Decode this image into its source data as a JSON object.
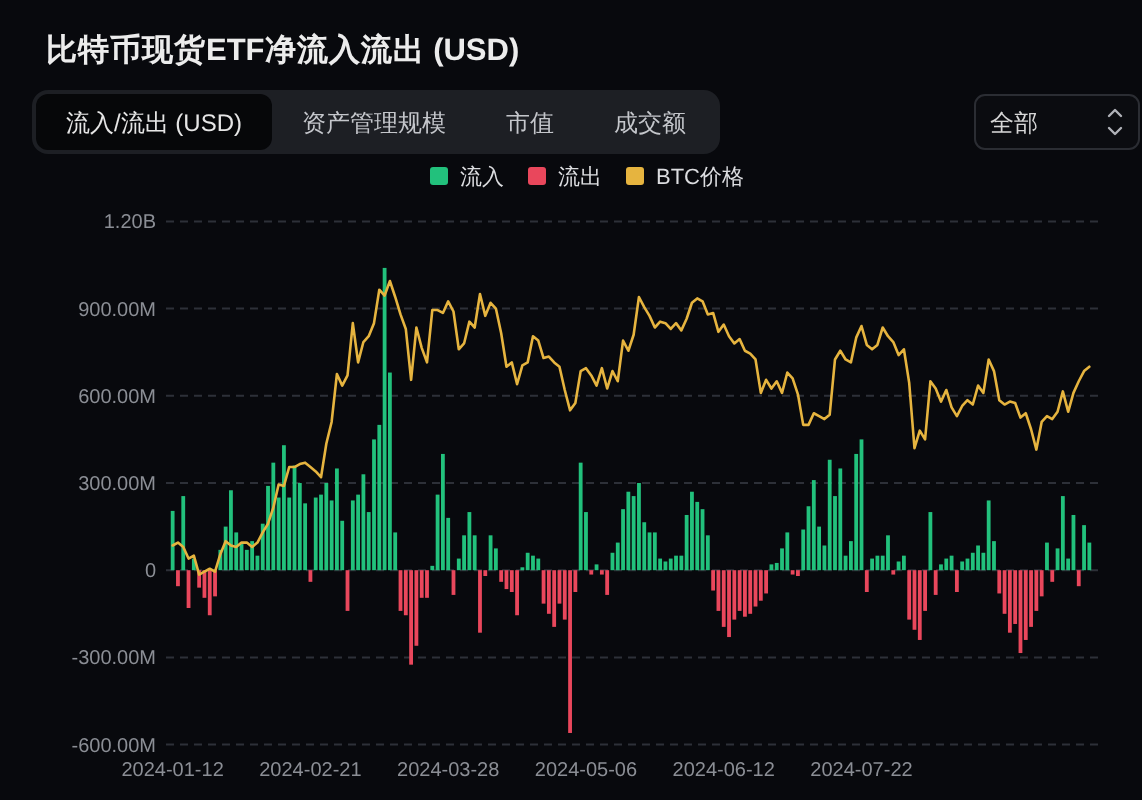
{
  "chart_data": {
    "type": "bar",
    "title": "比特币现货ETF净流入流出 (USD)",
    "annotations": [
      "流入/流出 (USD)",
      "资产管理规模",
      "市值",
      "成交额",
      "全部"
    ],
    "legend": "top",
    "grid": "y",
    "ylim": [
      -600000000,
      1200000000
    ],
    "yticks": [
      {
        "value": -600000000,
        "label": "-600.00M"
      },
      {
        "value": -300000000,
        "label": "-300.00M"
      },
      0,
      {
        "value": 300000000,
        "label": "300.00M"
      },
      {
        "value": 600000000,
        "label": "600.00M"
      },
      {
        "value": 900000000,
        "label": "900.00M"
      },
      {
        "value": 1200000000,
        "label": "1.20B"
      }
    ],
    "categories": [
      "2024-01-12",
      null,
      null,
      null,
      null,
      null,
      null,
      null,
      null,
      null,
      null,
      null,
      null,
      null,
      null,
      null,
      null,
      null,
      null,
      null,
      null,
      null,
      null,
      null,
      null,
      null,
      "2024-02-21",
      null,
      null,
      null,
      null,
      null,
      null,
      null,
      null,
      null,
      null,
      null,
      null,
      null,
      null,
      null,
      null,
      null,
      null,
      null,
      null,
      null,
      null,
      null,
      null,
      null,
      "2024-03-28",
      null,
      null,
      null,
      null,
      null,
      null,
      null,
      null,
      null,
      null,
      null,
      null,
      null,
      null,
      null,
      null,
      null,
      null,
      null,
      null,
      null,
      null,
      null,
      null,
      null,
      "2024-05-06",
      null,
      null,
      null,
      null,
      null,
      null,
      null,
      null,
      null,
      null,
      null,
      null,
      null,
      null,
      null,
      null,
      null,
      null,
      null,
      null,
      null,
      null,
      null,
      null,
      null,
      "2024-06-12",
      null,
      null,
      null,
      null,
      null,
      null,
      null,
      null,
      null,
      null,
      null,
      null,
      null,
      null,
      null,
      null,
      null,
      null,
      null,
      null,
      null,
      null,
      null,
      null,
      null,
      "2024-07-22",
      null,
      null,
      null,
      null,
      null,
      null,
      null,
      null,
      null,
      null,
      null,
      null,
      null,
      null,
      null,
      null,
      null,
      null,
      null,
      null,
      null,
      null,
      null,
      null,
      null,
      null,
      null,
      null,
      null,
      null,
      null,
      null,
      null,
      null,
      null,
      null,
      null,
      null,
      null,
      null,
      null,
      null,
      null
    ],
    "series": [
      {
        "name": "流入",
        "color": "#22c17c",
        "values": [
          204000000,
          null,
          255000000,
          null,
          40000000,
          null,
          null,
          null,
          null,
          70000000,
          150000000,
          275000000,
          130000000,
          90000000,
          70000000,
          100000000,
          50000000,
          160000000,
          290000000,
          370000000,
          250000000,
          430000000,
          250000000,
          360000000,
          300000000,
          230000000,
          null,
          250000000,
          260000000,
          300000000,
          240000000,
          350000000,
          170000000,
          null,
          240000000,
          260000000,
          330000000,
          200000000,
          450000000,
          500000000,
          1040000000,
          680000000,
          130000000,
          null,
          null,
          null,
          null,
          null,
          null,
          15000000,
          260000000,
          400000000,
          180000000,
          null,
          40000000,
          120000000,
          200000000,
          120000000,
          null,
          null,
          120000000,
          75000000,
          null,
          null,
          null,
          null,
          10000000,
          60000000,
          50000000,
          40000000,
          null,
          null,
          null,
          null,
          null,
          null,
          null,
          370000000,
          200000000,
          null,
          20000000,
          null,
          null,
          60000000,
          95000000,
          210000000,
          270000000,
          255000000,
          300000000,
          165000000,
          130000000,
          130000000,
          40000000,
          30000000,
          40000000,
          50000000,
          50000000,
          190000000,
          270000000,
          235000000,
          210000000,
          120000000,
          null,
          null,
          null,
          null,
          null,
          null,
          null,
          null,
          null,
          null,
          null,
          20000000,
          25000000,
          75000000,
          130000000,
          null,
          null,
          140000000,
          220000000,
          310000000,
          150000000,
          85000000,
          380000000,
          255000000,
          350000000,
          50000000,
          100000000,
          400000000,
          450000000,
          null,
          40000000,
          50000000,
          50000000,
          120000000,
          null,
          30000000,
          50000000,
          null,
          null,
          null,
          null,
          200000000,
          null,
          20000000,
          40000000,
          50000000,
          null,
          30000000,
          40000000,
          60000000,
          85000000,
          60000000,
          240000000,
          100000000,
          null,
          null,
          null,
          null,
          null,
          null,
          null,
          null,
          null,
          95000000,
          null,
          75000000,
          255000000,
          40000000,
          190000000,
          null,
          155000000,
          95000000
        ]
      },
      {
        "name": "流出",
        "color": "#e9475c",
        "values": [
          null,
          -55000000,
          null,
          -130000000,
          null,
          -60000000,
          -95000000,
          -155000000,
          -90000000,
          null,
          null,
          null,
          null,
          null,
          null,
          null,
          null,
          null,
          null,
          null,
          null,
          null,
          null,
          null,
          null,
          null,
          -40000000,
          null,
          null,
          null,
          null,
          null,
          null,
          -140000000,
          null,
          null,
          null,
          null,
          null,
          null,
          null,
          null,
          null,
          -140000000,
          -155000000,
          -325000000,
          -260000000,
          -95000000,
          -95000000,
          null,
          null,
          null,
          null,
          -85000000,
          null,
          null,
          null,
          null,
          -215000000,
          -20000000,
          null,
          null,
          -40000000,
          -65000000,
          -75000000,
          -155000000,
          null,
          null,
          null,
          null,
          -115000000,
          -150000000,
          -195000000,
          -115000000,
          -170000000,
          -560000000,
          -75000000,
          null,
          null,
          -15000000,
          null,
          -15000000,
          -85000000,
          null,
          null,
          null,
          null,
          null,
          null,
          null,
          null,
          null,
          null,
          null,
          null,
          null,
          null,
          null,
          null,
          null,
          null,
          null,
          -70000000,
          -140000000,
          -195000000,
          -230000000,
          -170000000,
          -140000000,
          -160000000,
          -150000000,
          -125000000,
          -105000000,
          -80000000,
          null,
          null,
          null,
          null,
          -15000000,
          -20000000,
          null,
          null,
          null,
          null,
          null,
          null,
          null,
          null,
          null,
          null,
          null,
          null,
          -75000000,
          null,
          null,
          null,
          null,
          -15000000,
          null,
          null,
          -170000000,
          -205000000,
          -240000000,
          -140000000,
          null,
          -85000000,
          null,
          null,
          null,
          -75000000,
          null,
          null,
          null,
          null,
          null,
          null,
          null,
          -80000000,
          -150000000,
          -215000000,
          -185000000,
          -285000000,
          -240000000,
          -195000000,
          -140000000,
          -90000000,
          null,
          -40000000,
          null,
          null,
          null,
          null,
          -55000000,
          null,
          null
        ]
      },
      {
        "name": "BTC价格",
        "type": "line",
        "color": "#e6b43f",
        "values": [
          85000000,
          95000000,
          80000000,
          40000000,
          50000000,
          -15000000,
          -5000000,
          5000000,
          -5000000,
          55000000,
          100000000,
          85000000,
          80000000,
          95000000,
          95000000,
          80000000,
          95000000,
          130000000,
          160000000,
          215000000,
          295000000,
          290000000,
          355000000,
          355000000,
          365000000,
          370000000,
          355000000,
          340000000,
          320000000,
          435000000,
          510000000,
          675000000,
          635000000,
          670000000,
          850000000,
          715000000,
          785000000,
          805000000,
          850000000,
          965000000,
          945000000,
          995000000,
          940000000,
          880000000,
          830000000,
          655000000,
          835000000,
          765000000,
          715000000,
          895000000,
          895000000,
          885000000,
          925000000,
          890000000,
          760000000,
          780000000,
          855000000,
          835000000,
          950000000,
          875000000,
          920000000,
          900000000,
          815000000,
          700000000,
          715000000,
          640000000,
          705000000,
          715000000,
          805000000,
          790000000,
          730000000,
          735000000,
          715000000,
          700000000,
          620000000,
          550000000,
          575000000,
          685000000,
          695000000,
          670000000,
          635000000,
          695000000,
          625000000,
          685000000,
          650000000,
          790000000,
          755000000,
          810000000,
          940000000,
          905000000,
          875000000,
          835000000,
          855000000,
          850000000,
          830000000,
          850000000,
          825000000,
          865000000,
          920000000,
          935000000,
          925000000,
          880000000,
          885000000,
          820000000,
          845000000,
          805000000,
          780000000,
          795000000,
          755000000,
          745000000,
          725000000,
          610000000,
          655000000,
          625000000,
          650000000,
          610000000,
          680000000,
          660000000,
          605000000,
          500000000,
          500000000,
          540000000,
          530000000,
          520000000,
          535000000,
          725000000,
          755000000,
          725000000,
          715000000,
          800000000,
          840000000,
          775000000,
          760000000,
          775000000,
          835000000,
          805000000,
          785000000,
          740000000,
          760000000,
          645000000,
          420000000,
          480000000,
          450000000,
          650000000,
          625000000,
          580000000,
          620000000,
          560000000,
          530000000,
          565000000,
          585000000,
          570000000,
          635000000,
          610000000,
          725000000,
          685000000,
          585000000,
          570000000,
          580000000,
          575000000,
          525000000,
          540000000,
          485000000,
          415000000,
          510000000,
          530000000,
          520000000,
          545000000,
          615000000,
          545000000,
          610000000,
          650000000,
          685000000,
          700000000
        ]
      }
    ]
  }
}
